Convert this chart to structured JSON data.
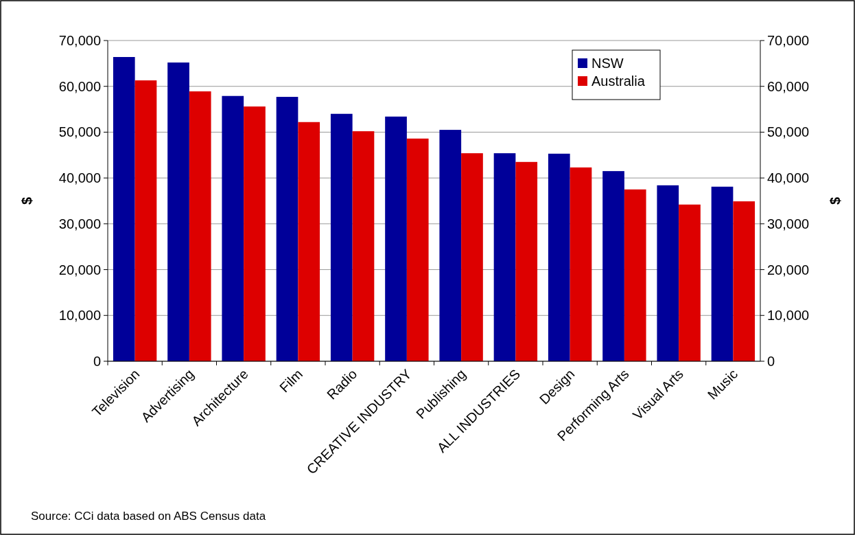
{
  "chart_data": {
    "type": "bar",
    "ylabel": "$",
    "y2label": "$",
    "categories": [
      "Television",
      "Advertising",
      "Architecture",
      "Film",
      "Radio",
      "CREATIVE INDUSTRY",
      "Publishing",
      "ALL INDUSTRIES",
      "Design",
      "Performing Arts",
      "Visual Arts",
      "Music"
    ],
    "series": [
      {
        "name": "NSW",
        "color": "#000099",
        "values": [
          66400,
          65200,
          57900,
          57700,
          54000,
          53400,
          50500,
          45400,
          45300,
          41500,
          38400,
          38100
        ]
      },
      {
        "name": "Australia",
        "color": "#dd0000",
        "values": [
          61300,
          58900,
          55600,
          52200,
          50200,
          48600,
          45400,
          43500,
          42300,
          37500,
          34200,
          34900
        ]
      }
    ],
    "ylim": [
      0,
      70000
    ],
    "yticks": [
      {
        "value": 0,
        "label": "0"
      },
      {
        "value": 10000,
        "label": "10,000"
      },
      {
        "value": 20000,
        "label": "20,000"
      },
      {
        "value": 30000,
        "label": "30,000"
      },
      {
        "value": 40000,
        "label": "40,000"
      },
      {
        "value": 50000,
        "label": "50,000"
      },
      {
        "value": 60000,
        "label": "60,000"
      },
      {
        "value": 70000,
        "label": "70,000"
      }
    ],
    "y2lim": [
      0,
      70000
    ],
    "y2ticks": [
      {
        "value": 0,
        "label": "0"
      },
      {
        "value": 10000,
        "label": "10,000"
      },
      {
        "value": 20000,
        "label": "20,000"
      },
      {
        "value": 30000,
        "label": "30,000"
      },
      {
        "value": 40000,
        "label": "40,000"
      },
      {
        "value": 50000,
        "label": "50,000"
      },
      {
        "value": 60000,
        "label": "60,000"
      },
      {
        "value": 70000,
        "label": "70,000"
      }
    ],
    "grid": "y",
    "legend": "top right",
    "annotations": [
      "Source: CCi data based on ABS Census data"
    ]
  }
}
